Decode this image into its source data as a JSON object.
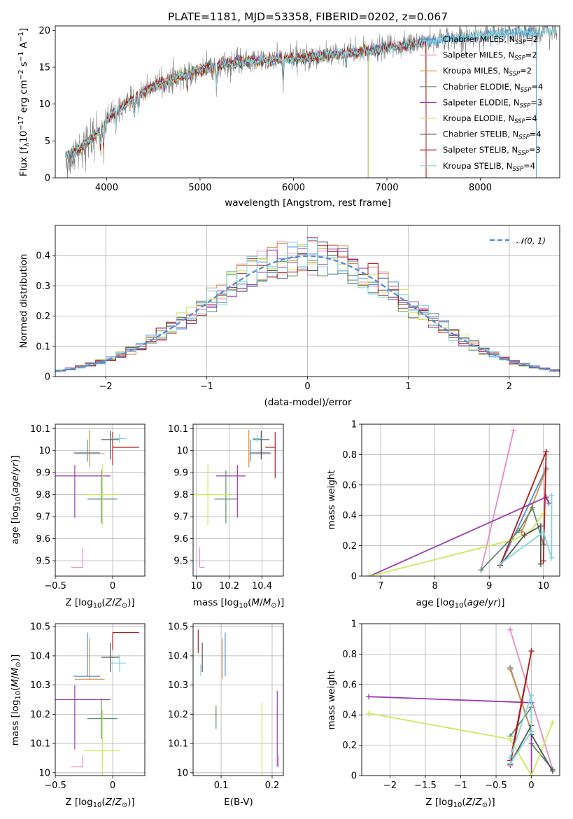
{
  "figure_title": "PLATE=1181, MJD=53358, FIBERID=0202, z=0.067",
  "colors": {
    "Chabrier MILES": "#4c8fd6",
    "Salpeter MILES": "#e88ac2",
    "Kroupa MILES": "#d98c3a",
    "Chabrier ELODIE": "#5e8f6b",
    "Salpeter ELODIE": "#9b3db5",
    "Kroupa ELODIE": "#cde85f",
    "Chabrier STELIB": "#555555",
    "Salpeter STELIB": "#b01c1c",
    "Kroupa STELIB": "#7fd6de",
    "data": "#808080",
    "normal": "#5b8ad6"
  },
  "chart_data": [
    {
      "id": "spectrum",
      "type": "line",
      "xlabel": "wavelength [Angstrom, rest frame]",
      "ylabel": "Flux [fλ10⁻¹⁷ erg cm⁻² s⁻¹ A⁻¹]",
      "xlim": [
        3450,
        8850
      ],
      "ylim": [
        0,
        20.6
      ],
      "xticks": [
        4000,
        5000,
        6000,
        7000,
        8000
      ],
      "yticks": [
        0,
        5,
        10,
        15,
        20
      ],
      "grid": false,
      "legend_position": "right",
      "continuum": {
        "x": [
          3550,
          3700,
          3850,
          3950,
          4050,
          4200,
          4350,
          4500,
          4700,
          4900,
          5100,
          5300,
          5600,
          5900,
          6200,
          6500,
          6800,
          7100,
          7400,
          7700,
          8000,
          8300,
          8600,
          8820
        ],
        "y": [
          3.0,
          3.8,
          5.5,
          6.8,
          8.5,
          10.0,
          11.2,
          12.3,
          13.3,
          14.3,
          14.9,
          15.5,
          15.8,
          16.1,
          16.4,
          16.8,
          17.2,
          17.8,
          18.4,
          18.9,
          19.3,
          19.6,
          19.8,
          19.9
        ]
      },
      "legend": [
        {
          "name": "Chabrier MILES",
          "nssp": "2"
        },
        {
          "name": "Salpeter MILES",
          "nssp": "2"
        },
        {
          "name": "Kroupa MILES",
          "nssp": "2"
        },
        {
          "name": "Chabrier ELODIE",
          "nssp": "4"
        },
        {
          "name": "Salpeter ELODIE",
          "nssp": "3"
        },
        {
          "name": "Kroupa ELODIE",
          "nssp": "4"
        },
        {
          "name": "Chabrier STELIB",
          "nssp": "4"
        },
        {
          "name": "Salpeter STELIB",
          "nssp": "3"
        },
        {
          "name": "Kroupa STELIB",
          "nssp": "4"
        }
      ],
      "legend_label_suffix": ", N",
      "legend_sub": "SSP"
    },
    {
      "id": "residuals",
      "type": "histogram",
      "xlabel": "(data-model)/error",
      "ylabel": "Normed distribution",
      "xlim": [
        -2.5,
        2.5
      ],
      "ylim": [
        0,
        0.5
      ],
      "xticks": [
        -2,
        -1,
        0,
        1,
        2
      ],
      "yticks": [
        0.0,
        0.1,
        0.2,
        0.3,
        0.4
      ],
      "grid": true,
      "bin_width": 0.1,
      "legend_label": "𝒩(0, 1)",
      "legend_position": "top-right"
    },
    {
      "id": "age_vs_Z",
      "type": "errorbar",
      "xlabel": "Z [log₁₀(Z/Z⊙)]",
      "ylabel": "age  [log₁₀(age/yr)]",
      "xlim": [
        -0.5,
        0.28
      ],
      "ylim": [
        9.43,
        10.12
      ],
      "xticks": [
        -0.5,
        0.0
      ],
      "yticks": [
        9.5,
        9.6,
        9.7,
        9.8,
        9.9,
        10.0,
        10.1
      ],
      "grid": true,
      "points": [
        {
          "model": "Chabrier MILES",
          "x": -0.22,
          "y": 9.99,
          "xerr": [
            0.12,
            0.11
          ],
          "yerr": [
            0.04,
            0.06
          ]
        },
        {
          "model": "Salpeter MILES",
          "x": -0.26,
          "y": 9.47,
          "xerr": [
            0.1,
            0.0
          ],
          "yerr": [
            0.0,
            0.09
          ]
        },
        {
          "model": "Kroupa MILES",
          "x": -0.2,
          "y": 9.985,
          "xerr": [
            0.13,
            0.13
          ],
          "yerr": [
            0.06,
            0.11
          ]
        },
        {
          "model": "Chabrier ELODIE",
          "x": -0.1,
          "y": 9.78,
          "xerr": [
            0.12,
            0.14
          ],
          "yerr": [
            0.11,
            0.13
          ]
        },
        {
          "model": "Salpeter ELODIE",
          "x": -0.33,
          "y": 9.885,
          "xerr": [
            0.45,
            0.31
          ],
          "yerr": [
            0.19,
            0.05
          ]
        },
        {
          "model": "Kroupa ELODIE",
          "x": -0.09,
          "y": 9.8,
          "xerr": [
            0.16,
            0.15
          ],
          "yerr": [
            0.14,
            0.14
          ]
        },
        {
          "model": "Chabrier STELIB",
          "x": -0.02,
          "y": 10.05,
          "xerr": [
            0.08,
            0.08
          ],
          "yerr": [
            0.09,
            0.04
          ]
        },
        {
          "model": "Salpeter STELIB",
          "x": 0.0,
          "y": 10.015,
          "xerr": [
            0.0,
            0.23
          ],
          "yerr": [
            0.08,
            0.07
          ]
        },
        {
          "model": "Kroupa STELIB",
          "x": 0.06,
          "y": 10.055,
          "xerr": [
            0.08,
            0.06
          ],
          "yerr": [
            0.02,
            0.02
          ]
        }
      ]
    },
    {
      "id": "age_vs_mass",
      "type": "errorbar",
      "xlabel": "mass [log₁₀(M/M⊙)]",
      "ylabel": "",
      "xlim": [
        9.98,
        10.53
      ],
      "ylim": [
        9.43,
        10.12
      ],
      "xticks": [
        10.0,
        10.2,
        10.4
      ],
      "yticks": [
        9.5,
        9.6,
        9.7,
        9.8,
        9.9,
        10.0,
        10.1
      ],
      "grid": true,
      "points": [
        {
          "model": "Chabrier MILES",
          "x": 10.33,
          "y": 9.99,
          "xerr": [
            0.0,
            0.12
          ],
          "yerr": [
            0.04,
            0.06
          ]
        },
        {
          "model": "Salpeter MILES",
          "x": 10.02,
          "y": 9.47,
          "xerr": [
            0.0,
            0.03
          ],
          "yerr": [
            0.0,
            0.09
          ]
        },
        {
          "model": "Kroupa MILES",
          "x": 10.32,
          "y": 9.985,
          "xerr": [
            0.0,
            0.14
          ],
          "yerr": [
            0.06,
            0.11
          ]
        },
        {
          "model": "Chabrier ELODIE",
          "x": 10.18,
          "y": 9.78,
          "xerr": [
            0.07,
            0.07
          ],
          "yerr": [
            0.11,
            0.13
          ]
        },
        {
          "model": "Salpeter ELODIE",
          "x": 10.25,
          "y": 9.885,
          "xerr": [
            0.13,
            0.05
          ],
          "yerr": [
            0.19,
            0.05
          ]
        },
        {
          "model": "Kroupa ELODIE",
          "x": 10.07,
          "y": 9.8,
          "xerr": [
            0.14,
            0.14
          ],
          "yerr": [
            0.14,
            0.14
          ]
        },
        {
          "model": "Chabrier STELIB",
          "x": 10.395,
          "y": 10.05,
          "xerr": [
            0.05,
            0.05
          ],
          "yerr": [
            0.09,
            0.04
          ]
        },
        {
          "model": "Salpeter STELIB",
          "x": 10.48,
          "y": 10.015,
          "xerr": [
            0.06,
            0.0
          ],
          "yerr": [
            0.14,
            0.07
          ]
        },
        {
          "model": "Kroupa STELIB",
          "x": 10.37,
          "y": 10.055,
          "xerr": [
            0.03,
            0.03
          ],
          "yerr": [
            0.02,
            0.02
          ]
        }
      ]
    },
    {
      "id": "mass_weight_vs_age",
      "type": "line",
      "xlabel": "age  [log₁₀(age/yr)]",
      "ylabel": "mass weight",
      "xlim": [
        6.65,
        10.3
      ],
      "ylim": [
        0,
        1.0
      ],
      "xticks": [
        7,
        8,
        9,
        10
      ],
      "yticks": [
        0.0,
        0.2,
        0.4,
        0.6,
        0.8,
        1.0
      ],
      "grid": true,
      "series": [
        {
          "model": "Chabrier MILES",
          "points": [
            [
              9.2,
              0.07
            ],
            [
              10.05,
              0.71
            ]
          ]
        },
        {
          "model": "Salpeter MILES",
          "points": [
            [
              8.85,
              0.04
            ],
            [
              9.45,
              0.96
            ]
          ]
        },
        {
          "model": "Kroupa MILES",
          "points": [
            [
              9.6,
              0.29
            ],
            [
              10.05,
              0.7
            ]
          ]
        },
        {
          "model": "Chabrier ELODIE",
          "points": [
            [
              8.85,
              0.04
            ],
            [
              9.55,
              0.3
            ],
            [
              9.8,
              0.45
            ],
            [
              10.0,
              0.21
            ]
          ]
        },
        {
          "model": "Salpeter ELODIE",
          "points": [
            [
              6.8,
              0.0
            ],
            [
              10.05,
              0.52
            ],
            [
              10.1,
              0.48
            ]
          ]
        },
        {
          "model": "Kroupa ELODIE",
          "points": [
            [
              6.8,
              0.0
            ],
            [
              9.45,
              0.24
            ],
            [
              9.75,
              0.29
            ],
            [
              10.0,
              0.41
            ]
          ]
        },
        {
          "model": "Chabrier STELIB",
          "points": [
            [
              9.2,
              0.07
            ],
            [
              9.65,
              0.27
            ],
            [
              9.95,
              0.33
            ],
            [
              9.95,
              0.08
            ]
          ]
        },
        {
          "model": "Salpeter STELIB",
          "points": [
            [
              9.2,
              0.07
            ],
            [
              10.05,
              0.82
            ],
            [
              10.0,
              0.1
            ]
          ]
        },
        {
          "model": "Kroupa STELIB",
          "points": [
            [
              9.2,
              0.08
            ],
            [
              10.0,
              0.29
            ],
            [
              10.15,
              0.12
            ],
            [
              10.15,
              0.53
            ]
          ]
        }
      ]
    },
    {
      "id": "mass_vs_Z",
      "type": "errorbar",
      "xlabel": "Z [log₁₀(Z/Z⊙)]",
      "ylabel": "mass [log₁₀(M/M⊙)]",
      "xlim": [
        -0.5,
        0.28
      ],
      "ylim": [
        9.99,
        10.51
      ],
      "xticks": [
        -0.5,
        0.0
      ],
      "yticks": [
        10.0,
        10.1,
        10.2,
        10.3,
        10.4,
        10.5
      ],
      "grid": true,
      "points": [
        {
          "model": "Chabrier MILES",
          "x": -0.22,
          "y": 10.33,
          "xerr": [
            0.12,
            0.11
          ],
          "yerr": [
            0.0,
            0.15
          ]
        },
        {
          "model": "Salpeter MILES",
          "x": -0.26,
          "y": 10.02,
          "xerr": [
            0.1,
            0.0
          ],
          "yerr": [
            0.0,
            0.04
          ]
        },
        {
          "model": "Kroupa MILES",
          "x": -0.2,
          "y": 10.32,
          "xerr": [
            0.13,
            0.13
          ],
          "yerr": [
            0.0,
            0.14
          ]
        },
        {
          "model": "Chabrier ELODIE",
          "x": -0.1,
          "y": 10.185,
          "xerr": [
            0.12,
            0.14
          ],
          "yerr": [
            0.07,
            0.07
          ]
        },
        {
          "model": "Salpeter ELODIE",
          "x": -0.33,
          "y": 10.25,
          "xerr": [
            0.45,
            0.31
          ],
          "yerr": [
            0.17,
            0.05
          ]
        },
        {
          "model": "Kroupa ELODIE",
          "x": -0.09,
          "y": 10.075,
          "xerr": [
            0.16,
            0.15
          ],
          "yerr": [
            0.14,
            0.14
          ]
        },
        {
          "model": "Chabrier STELIB",
          "x": -0.02,
          "y": 10.395,
          "xerr": [
            0.08,
            0.08
          ],
          "yerr": [
            0.05,
            0.05
          ]
        },
        {
          "model": "Salpeter STELIB",
          "x": 0.0,
          "y": 10.48,
          "xerr": [
            0.0,
            0.23
          ],
          "yerr": [
            0.06,
            0.0
          ]
        },
        {
          "model": "Kroupa STELIB",
          "x": 0.06,
          "y": 10.375,
          "xerr": [
            0.08,
            0.06
          ],
          "yerr": [
            0.03,
            0.03
          ]
        }
      ]
    },
    {
      "id": "mass_vs_ebv",
      "type": "errorbar",
      "xlabel": "E(B-V)",
      "ylabel": "",
      "xlim": [
        0.045,
        0.222
      ],
      "ylim": [
        9.99,
        10.51
      ],
      "xticks": [
        0.1,
        0.2
      ],
      "yticks": [
        10.0,
        10.1,
        10.2,
        10.3,
        10.4,
        10.5
      ],
      "grid": true,
      "points": [
        {
          "model": "Chabrier MILES",
          "x": 0.108,
          "y": 10.33,
          "xerr": [
            0,
            0
          ],
          "yerr": [
            0.0,
            0.15
          ]
        },
        {
          "model": "Salpeter MILES",
          "x": 0.213,
          "y": 10.02,
          "xerr": [
            0,
            0
          ],
          "yerr": [
            0.0,
            0.04
          ]
        },
        {
          "model": "Kroupa MILES",
          "x": 0.102,
          "y": 10.32,
          "xerr": [
            0,
            0
          ],
          "yerr": [
            0.0,
            0.14
          ]
        },
        {
          "model": "Chabrier ELODIE",
          "x": 0.09,
          "y": 10.15,
          "xerr": [
            0,
            0
          ],
          "yerr": [
            0.0,
            0.08
          ]
        },
        {
          "model": "Salpeter ELODIE",
          "x": 0.21,
          "y": 10.15,
          "xerr": [
            0,
            0
          ],
          "yerr": [
            0.13,
            0.13
          ]
        },
        {
          "model": "Kroupa ELODIE",
          "x": 0.18,
          "y": 10.1,
          "xerr": [
            0,
            0
          ],
          "yerr": [
            0.14,
            0.14
          ]
        },
        {
          "model": "Chabrier STELIB",
          "x": 0.063,
          "y": 10.395,
          "xerr": [
            0,
            0
          ],
          "yerr": [
            0.05,
            0.05
          ]
        },
        {
          "model": "Salpeter STELIB",
          "x": 0.055,
          "y": 10.45,
          "xerr": [
            0,
            0
          ],
          "yerr": [
            0.04,
            0.04
          ]
        },
        {
          "model": "Kroupa STELIB",
          "x": 0.06,
          "y": 10.37,
          "xerr": [
            0,
            0
          ],
          "yerr": [
            0.04,
            0.0
          ]
        }
      ]
    },
    {
      "id": "mass_weight_vs_Z",
      "type": "line",
      "xlabel": "Z [log₁₀(Z/Z⊙)]",
      "ylabel": "mass weight",
      "xlim": [
        -2.4,
        0.4
      ],
      "ylim": [
        0,
        1.0
      ],
      "xticks": [
        -2.0,
        -1.5,
        -1.0,
        -0.5,
        0.0
      ],
      "yticks": [
        0.0,
        0.2,
        0.4,
        0.6,
        0.8,
        1.0
      ],
      "grid": true,
      "series": [
        {
          "model": "Chabrier MILES",
          "points": [
            [
              -0.3,
              0.71
            ],
            [
              0.0,
              0.29
            ]
          ]
        },
        {
          "model": "Salpeter MILES",
          "points": [
            [
              -0.3,
              0.96
            ],
            [
              0.3,
              0.04
            ]
          ]
        },
        {
          "model": "Kroupa MILES",
          "points": [
            [
              -0.3,
              0.7
            ],
            [
              0.0,
              0.29
            ]
          ]
        },
        {
          "model": "Chabrier ELODIE",
          "points": [
            [
              -0.3,
              0.26
            ],
            [
              0.0,
              0.45
            ],
            [
              0.0,
              0.21
            ],
            [
              0.3,
              0.04
            ]
          ]
        },
        {
          "model": "Salpeter ELODIE",
          "points": [
            [
              -2.3,
              0.52
            ],
            [
              0.0,
              0.48
            ],
            [
              0.0,
              0.0
            ]
          ]
        },
        {
          "model": "Kroupa ELODIE",
          "points": [
            [
              -2.3,
              0.41
            ],
            [
              -0.3,
              0.24
            ],
            [
              0.0,
              0.0
            ],
            [
              0.3,
              0.35
            ]
          ]
        },
        {
          "model": "Chabrier STELIB",
          "points": [
            [
              -0.3,
              0.08
            ],
            [
              0.0,
              0.33
            ],
            [
              0.0,
              0.27
            ],
            [
              0.3,
              0.03
            ]
          ]
        },
        {
          "model": "Salpeter STELIB",
          "points": [
            [
              -0.3,
              0.1
            ],
            [
              0.0,
              0.82
            ],
            [
              -0.3,
              0.07
            ]
          ]
        },
        {
          "model": "Kroupa STELIB",
          "points": [
            [
              -0.3,
              0.12
            ],
            [
              0.0,
              0.53
            ],
            [
              0.0,
              0.29
            ],
            [
              -0.3,
              0.08
            ]
          ]
        }
      ]
    }
  ]
}
